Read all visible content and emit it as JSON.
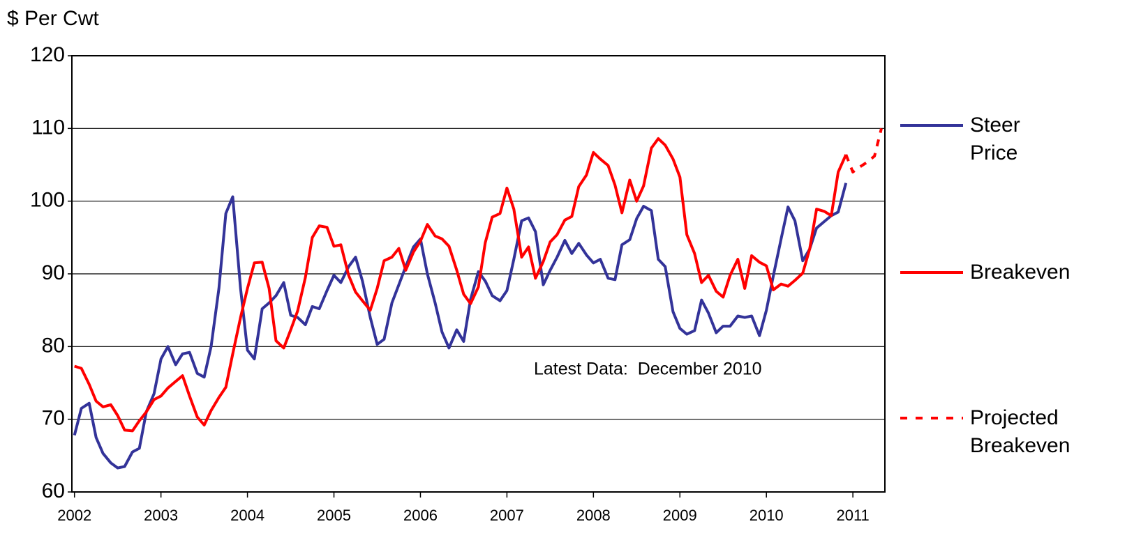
{
  "chart_data": {
    "type": "line",
    "y_label": "$ Per Cwt",
    "annotation": "Latest Data:  December 2010",
    "x": [
      2002.0,
      2002.08,
      2002.17,
      2002.25,
      2002.33,
      2002.42,
      2002.5,
      2002.58,
      2002.67,
      2002.75,
      2002.83,
      2002.92,
      2003.0,
      2003.08,
      2003.17,
      2003.25,
      2003.33,
      2003.42,
      2003.5,
      2003.58,
      2003.67,
      2003.75,
      2003.83,
      2003.92,
      2004.0,
      2004.08,
      2004.17,
      2004.25,
      2004.33,
      2004.42,
      2004.5,
      2004.58,
      2004.67,
      2004.75,
      2004.83,
      2004.92,
      2005.0,
      2005.08,
      2005.17,
      2005.25,
      2005.33,
      2005.42,
      2005.5,
      2005.58,
      2005.67,
      2005.75,
      2005.83,
      2005.92,
      2006.0,
      2006.08,
      2006.17,
      2006.25,
      2006.33,
      2006.42,
      2006.5,
      2006.58,
      2006.67,
      2006.75,
      2006.83,
      2006.92,
      2007.0,
      2007.08,
      2007.17,
      2007.25,
      2007.33,
      2007.42,
      2007.5,
      2007.58,
      2007.67,
      2007.75,
      2007.83,
      2007.92,
      2008.0,
      2008.08,
      2008.17,
      2008.25,
      2008.33,
      2008.42,
      2008.5,
      2008.58,
      2008.67,
      2008.75,
      2008.83,
      2008.92,
      2009.0,
      2009.08,
      2009.17,
      2009.25,
      2009.33,
      2009.42,
      2009.5,
      2009.58,
      2009.67,
      2009.75,
      2009.83,
      2009.92,
      2010.0,
      2010.08,
      2010.17,
      2010.25,
      2010.33,
      2010.42,
      2010.5,
      2010.58,
      2010.67,
      2010.75,
      2010.83,
      2010.92
    ],
    "series": [
      {
        "name": "Steer Price",
        "color": "#333399",
        "dashed": false,
        "values": [
          67.8,
          71.5,
          72.2,
          67.5,
          65.3,
          64.0,
          63.3,
          63.5,
          65.5,
          66.0,
          71.0,
          73.5,
          78.3,
          80.0,
          77.5,
          79.0,
          79.2,
          76.3,
          75.8,
          80.0,
          88.0,
          98.3,
          100.6,
          88.0,
          79.5,
          78.3,
          85.2,
          86.0,
          87.0,
          88.8,
          84.3,
          84.0,
          83.0,
          85.5,
          85.2,
          87.7,
          89.8,
          88.8,
          91.0,
          92.3,
          89.0,
          84.0,
          80.3,
          81.0,
          86.0,
          88.5,
          91.0,
          93.7,
          94.8,
          90.0,
          86.0,
          82.0,
          79.8,
          82.3,
          80.7,
          86.5,
          90.3,
          89.0,
          87.0,
          86.3,
          87.7,
          92.0,
          97.3,
          97.7,
          95.8,
          88.5,
          90.5,
          92.3,
          94.6,
          92.8,
          94.2,
          92.6,
          91.5,
          92.0,
          89.4,
          89.2,
          94.0,
          94.7,
          97.6,
          99.3,
          98.7,
          92.0,
          91.0,
          84.8,
          82.5,
          81.7,
          82.2,
          86.4,
          84.6,
          81.9,
          82.8,
          82.8,
          84.2,
          84.0,
          84.2,
          81.5,
          85.0,
          89.7,
          94.8,
          99.2,
          97.3,
          91.8,
          93.4,
          96.3,
          97.2,
          98.0,
          98.5,
          102.5
        ]
      },
      {
        "name": "Breakeven",
        "color": "#ff0000",
        "dashed": false,
        "values": [
          77.3,
          77.0,
          74.8,
          72.5,
          71.7,
          72.0,
          70.5,
          68.5,
          68.4,
          69.8,
          71.0,
          72.7,
          73.2,
          74.3,
          75.2,
          76.0,
          73.2,
          70.3,
          69.2,
          71.2,
          73.0,
          74.4,
          79.0,
          84.0,
          88.0,
          91.5,
          91.6,
          88.0,
          80.8,
          79.8,
          82.3,
          84.9,
          89.5,
          95.0,
          96.6,
          96.4,
          93.8,
          94.0,
          89.8,
          87.5,
          86.3,
          85.0,
          88.0,
          91.8,
          92.3,
          93.5,
          90.5,
          93.0,
          94.5,
          96.8,
          95.2,
          94.8,
          93.8,
          90.5,
          87.2,
          85.9,
          88.2,
          94.3,
          97.8,
          98.3,
          101.8,
          98.9,
          92.3,
          93.7,
          89.4,
          91.7,
          94.4,
          95.4,
          97.4,
          97.9,
          102.0,
          103.6,
          106.7,
          105.8,
          104.9,
          102.2,
          98.4,
          102.9,
          100.0,
          102.1,
          107.3,
          108.6,
          107.7,
          105.8,
          103.3,
          95.4,
          92.8,
          88.8,
          89.8,
          87.6,
          86.8,
          89.8,
          92.0,
          88.0,
          92.5,
          91.6,
          91.1,
          87.8,
          88.6,
          88.3,
          89.1,
          90.1,
          93.4,
          98.9,
          98.6,
          98.0,
          104.0,
          106.4
        ]
      },
      {
        "name": "Projected Breakeven",
        "color": "#ff0000",
        "dashed": true,
        "x": [
          2010.92,
          2011.0,
          2011.08,
          2011.17,
          2011.25,
          2011.33
        ],
        "values": [
          106.4,
          104.0,
          104.7,
          105.4,
          106.2,
          110.0
        ]
      }
    ],
    "xlim": [
      2001.97,
      2011.37
    ],
    "xticks": [
      2002,
      2003,
      2004,
      2005,
      2006,
      2007,
      2008,
      2009,
      2010,
      2011
    ],
    "ylim": [
      60,
      120
    ],
    "yticks": [
      60,
      70,
      80,
      90,
      100,
      110,
      120
    ],
    "grid": true,
    "legend": "right"
  }
}
